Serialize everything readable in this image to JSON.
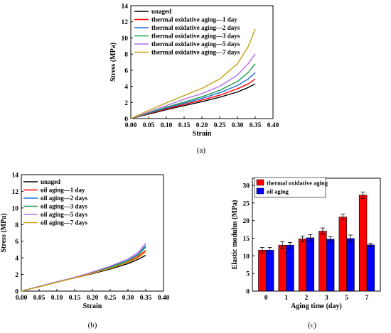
{
  "chart_data": [
    {
      "panel_label": "(a)",
      "type": "line",
      "xlabel": "Strain",
      "ylabel": "Stress (MPa)",
      "xlim": [
        0,
        0.4
      ],
      "ylim": [
        0,
        14
      ],
      "xticks": [
        "0.00",
        "0.05",
        "0.10",
        "0.15",
        "0.20",
        "0.25",
        "0.30",
        "0.35",
        "0.40"
      ],
      "yticks": [
        "0",
        "2",
        "4",
        "6",
        "8",
        "10",
        "12",
        "14"
      ],
      "grid": false,
      "legend": "top-left",
      "x": [
        0,
        0.05,
        0.1,
        0.15,
        0.2,
        0.25,
        0.3,
        0.33,
        0.35
      ],
      "series": [
        {
          "name": "unaged",
          "color": "#000000",
          "values": [
            0,
            0.55,
            1.1,
            1.6,
            2.1,
            2.65,
            3.3,
            3.85,
            4.3
          ]
        },
        {
          "name": "thermal oxidative aging—1 day",
          "color": "#ff0000",
          "values": [
            0,
            0.6,
            1.2,
            1.75,
            2.3,
            2.9,
            3.7,
            4.3,
            4.9
          ]
        },
        {
          "name": "thermal oxidative aging—2 days",
          "color": "#1f6fe0",
          "values": [
            0,
            0.65,
            1.3,
            1.9,
            2.5,
            3.2,
            4.1,
            4.9,
            5.7
          ]
        },
        {
          "name": "thermal oxidative aging—3 days",
          "color": "#1a9e4a",
          "values": [
            0,
            0.7,
            1.4,
            2.05,
            2.7,
            3.5,
            4.6,
            5.7,
            6.8
          ]
        },
        {
          "name": "thermal oxidative aging—5 days",
          "color": "#b26ee8",
          "values": [
            0,
            0.8,
            1.6,
            2.4,
            3.1,
            4.0,
            5.4,
            6.8,
            8.0
          ]
        },
        {
          "name": "thermal oxidative aging—7 days",
          "color": "#c8a012",
          "values": [
            0,
            1.0,
            1.95,
            2.85,
            3.75,
            4.9,
            6.8,
            8.9,
            11.1
          ]
        }
      ]
    },
    {
      "panel_label": "(b)",
      "type": "line",
      "xlabel": "Strain",
      "ylabel": "Stress (MPa)",
      "xlim": [
        0,
        0.4
      ],
      "ylim": [
        0,
        14
      ],
      "xticks": [
        "0.00",
        "0.05",
        "0.10",
        "0.15",
        "0.20",
        "0.25",
        "0.30",
        "0.35",
        "0.40"
      ],
      "yticks": [
        "0",
        "2",
        "4",
        "6",
        "8",
        "10",
        "12",
        "14"
      ],
      "grid": false,
      "legend": "top-left",
      "x": [
        0,
        0.05,
        0.1,
        0.15,
        0.2,
        0.25,
        0.3,
        0.33,
        0.35
      ],
      "series": [
        {
          "name": "unaged",
          "color": "#000000",
          "values": [
            0,
            0.55,
            1.1,
            1.6,
            2.1,
            2.65,
            3.3,
            3.85,
            4.3
          ]
        },
        {
          "name": "oil aging—1 day",
          "color": "#ff0000",
          "values": [
            0,
            0.55,
            1.1,
            1.6,
            2.15,
            2.75,
            3.5,
            4.2,
            4.9
          ]
        },
        {
          "name": "oil aging—2 days",
          "color": "#1f6fe0",
          "values": [
            0,
            0.55,
            1.1,
            1.65,
            2.25,
            2.9,
            3.7,
            4.5,
            5.5
          ]
        },
        {
          "name": "oil aging—3 days",
          "color": "#1a9e4a",
          "values": [
            0,
            0.55,
            1.1,
            1.65,
            2.2,
            2.85,
            3.65,
            4.4,
            5.3
          ]
        },
        {
          "name": "oil aging—5 days",
          "color": "#b26ee8",
          "values": [
            0,
            0.55,
            1.1,
            1.65,
            2.3,
            3.0,
            3.85,
            4.7,
            5.75
          ]
        },
        {
          "name": "oil aging—7 days",
          "color": "#c8a012",
          "values": [
            0,
            0.5,
            1.05,
            1.6,
            2.15,
            2.75,
            3.45,
            4.05,
            4.7
          ]
        }
      ]
    },
    {
      "panel_label": "(c)",
      "type": "bar",
      "xlabel": "Aging time (day)",
      "ylabel": "Elastic modulus (MPa)",
      "ylim": [
        0,
        32
      ],
      "yticks": [
        "0",
        "5",
        "10",
        "15",
        "20",
        "25",
        "30"
      ],
      "categories": [
        "0",
        "1",
        "2",
        "3",
        "5",
        "7"
      ],
      "legend": "top-left",
      "series": [
        {
          "name": "thermal oxidative aging",
          "color": "#ff0000",
          "values": [
            11.6,
            13.0,
            14.8,
            17.0,
            21.0,
            27.2
          ],
          "errors": [
            0.8,
            1.0,
            0.8,
            0.9,
            0.8,
            0.9
          ]
        },
        {
          "name": "oil aging",
          "color": "#0000ff",
          "values": [
            11.6,
            13.0,
            15.1,
            14.7,
            14.9,
            13.1
          ],
          "errors": [
            0.8,
            0.8,
            0.9,
            0.7,
            1.0,
            0.5
          ]
        }
      ]
    }
  ]
}
